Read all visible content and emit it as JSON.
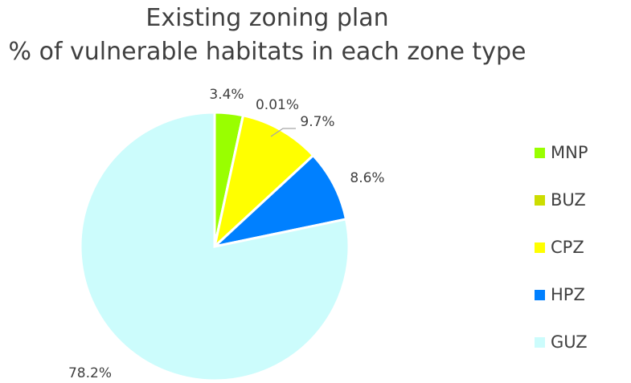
{
  "chart_data": {
    "type": "pie",
    "title": "Existing zoning plan",
    "subtitle": "% of vulnerable habitats in each zone type",
    "categories": [
      "MNP",
      "BUZ",
      "CPZ",
      "HPZ",
      "GUZ"
    ],
    "values": [
      3.4,
      0.01,
      9.7,
      8.6,
      78.2
    ],
    "labels": [
      "3.4%",
      "0.01%",
      "9.7%",
      "8.6%",
      "78.2%"
    ],
    "colors": [
      "#99ff00",
      "#ccdd00",
      "#ffff00",
      "#0080ff",
      "#ccfcfc"
    ],
    "legend_position": "right",
    "start_angle": "12 o'clock",
    "direction": "clockwise"
  }
}
